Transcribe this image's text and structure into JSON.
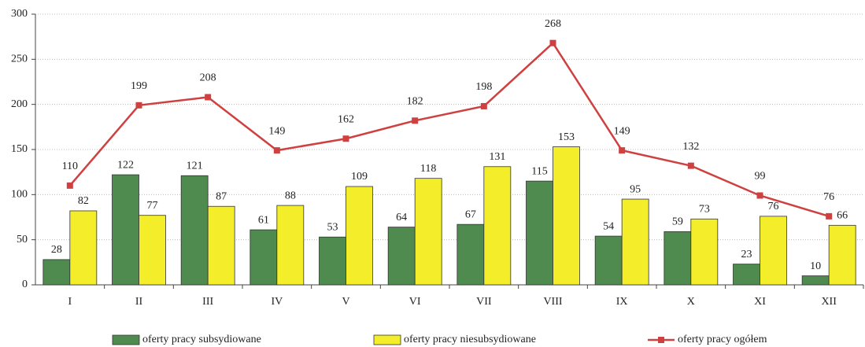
{
  "chart_data": {
    "type": "bar",
    "categories": [
      "I",
      "II",
      "III",
      "IV",
      "V",
      "VI",
      "VII",
      "VIII",
      "IX",
      "X",
      "XI",
      "XII"
    ],
    "series": [
      {
        "name": "oferty pracy subsydiowane",
        "color": "#4f8a4f",
        "values": [
          28,
          122,
          121,
          61,
          53,
          64,
          67,
          115,
          54,
          59,
          23,
          10
        ]
      },
      {
        "name": "oferty pracy niesubsydiowane",
        "color": "#f4ee2a",
        "values": [
          82,
          77,
          87,
          88,
          109,
          118,
          131,
          153,
          95,
          73,
          76,
          66
        ]
      },
      {
        "name": "oferty pracy ogółem",
        "color": "#cf4141",
        "type": "line",
        "values": [
          110,
          199,
          208,
          149,
          162,
          182,
          198,
          268,
          149,
          132,
          99,
          76
        ]
      }
    ],
    "ylim": [
      0,
      300
    ],
    "yticks": [
      0,
      50,
      100,
      150,
      200,
      250,
      300
    ],
    "grid": true
  }
}
